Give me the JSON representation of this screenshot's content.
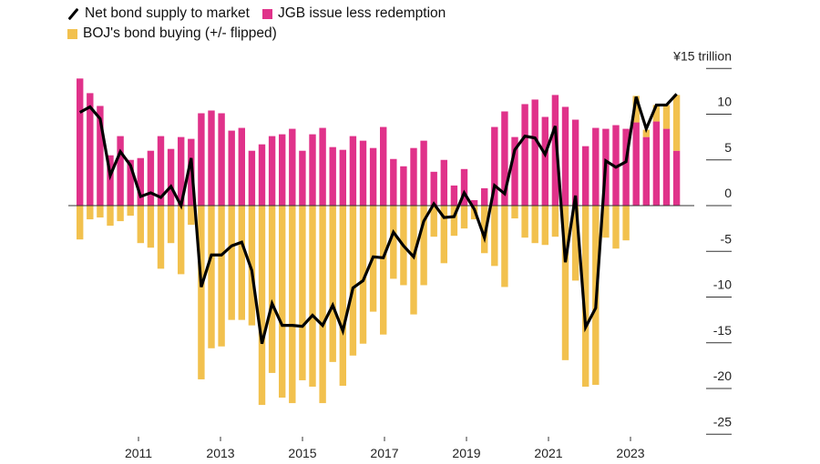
{
  "legend": {
    "line_label": "Net bond supply to market",
    "jgb_label": "JGB issue less redemption",
    "boj_label": "BOJ's bond buying (+/- flipped)"
  },
  "colors": {
    "jgb": "#e0328a",
    "boj": "#f2c14e",
    "line": "#000000",
    "axis": "#333333"
  },
  "chart_data": {
    "type": "bar",
    "stacked": true,
    "title": "",
    "xlabel": "",
    "ylabel": "¥ trillion",
    "unit_label": "¥15 trillion",
    "ylim": [
      -27,
      17
    ],
    "yticks": [
      15,
      10,
      5,
      0,
      -5,
      -10,
      -15,
      -20,
      -25
    ],
    "ytick_labels": [
      "¥15 trillion",
      "10",
      "5",
      "0",
      "-5",
      "-10",
      "-15",
      "-20",
      "-25"
    ],
    "xtick_labels": [
      "2011",
      "2013",
      "2015",
      "2017",
      "2019",
      "2021",
      "2023"
    ],
    "x_start": "2009 Q3",
    "x_end": "2024 Q2",
    "frequency": "quarterly",
    "legend_position": "top-left",
    "grid": false,
    "series": [
      {
        "name": "JGB issue less redemption",
        "type": "bar",
        "values": [
          13.9,
          12.3,
          10.9,
          5.5,
          7.6,
          5.0,
          5.2,
          6.0,
          7.6,
          6.2,
          7.5,
          7.3,
          10.1,
          10.4,
          10.1,
          8.2,
          8.5,
          6.0,
          6.7,
          7.6,
          7.8,
          8.4,
          6.0,
          7.8,
          8.5,
          6.4,
          6.1,
          7.6,
          7.1,
          6.3,
          8.6,
          5.1,
          4.3,
          6.3,
          7.1,
          3.7,
          5.0,
          2.2,
          4.0,
          0.6,
          1.9,
          8.6,
          10.3,
          7.5,
          11.1,
          11.6,
          9.7,
          12.1,
          10.8,
          9.4,
          6.5,
          8.5,
          8.4,
          8.8,
          8.4,
          9.1,
          7.5,
          9.2,
          8.4,
          6.0
        ]
      },
      {
        "name": "BOJ's bond buying (+/- flipped)",
        "type": "bar",
        "values": [
          -3.7,
          -1.5,
          -1.3,
          -2.2,
          -1.7,
          -1.1,
          -4.1,
          -4.6,
          -6.9,
          -4.1,
          -7.5,
          -2.1,
          -19.0,
          -15.6,
          -15.4,
          -12.5,
          -12.5,
          -13.1,
          -21.8,
          -18.3,
          -21.0,
          -21.6,
          -19.1,
          -19.8,
          -21.6,
          -17.1,
          -19.7,
          -16.4,
          -15.1,
          -11.6,
          -14.1,
          -8.0,
          -8.7,
          -11.9,
          -8.7,
          -3.4,
          -6.3,
          -3.3,
          -2.5,
          -1.5,
          -5.2,
          -6.6,
          -8.9,
          -1.4,
          -3.5,
          -4.1,
          -4.3,
          -3.4,
          -16.9,
          -8.2,
          -19.8,
          -19.6,
          -3.5,
          -4.7,
          -3.8,
          2.9,
          0.8,
          1.8,
          2.6,
          6.1
        ]
      },
      {
        "name": "Net bond supply to market",
        "type": "line",
        "values": [
          10.2,
          10.8,
          9.5,
          3.3,
          5.9,
          4.4,
          1.0,
          1.4,
          0.9,
          2.1,
          0.0,
          5.2,
          -8.9,
          -5.4,
          -5.4,
          -4.4,
          -4.0,
          -7.1,
          -15.1,
          -10.7,
          -13.1,
          -13.1,
          -13.2,
          -12.0,
          -13.1,
          -10.9,
          -13.7,
          -9.0,
          -8.2,
          -5.6,
          -5.7,
          -2.9,
          -4.4,
          -5.6,
          -1.7,
          0.2,
          -1.3,
          -1.2,
          1.4,
          -0.4,
          -3.5,
          2.2,
          1.3,
          6.1,
          7.6,
          7.4,
          5.6,
          8.7,
          -6.2,
          1.1,
          -13.3,
          -11.2,
          4.9,
          4.2,
          4.8,
          11.9,
          8.4,
          11.0,
          11.0,
          12.2
        ]
      }
    ]
  }
}
